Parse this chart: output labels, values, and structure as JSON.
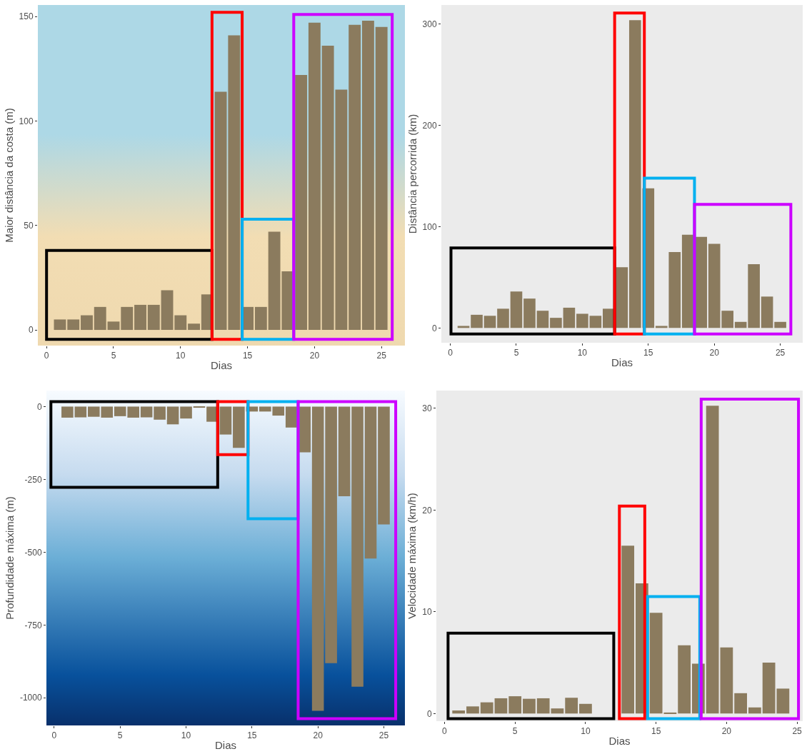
{
  "chart_data": [
    {
      "type": "bar",
      "xlabel": "Dias",
      "ylabel": "Maior distância da costa (m)",
      "color": "#8b7b5e",
      "grid": false,
      "x": [
        1,
        2,
        3,
        4,
        5,
        6,
        7,
        8,
        9,
        10,
        11,
        12,
        13,
        14,
        15,
        16,
        17,
        18,
        19,
        20,
        21,
        22,
        23,
        24,
        25
      ],
      "values": [
        5,
        5,
        7,
        11,
        4,
        11,
        12,
        12,
        19,
        7,
        3,
        17,
        114,
        141,
        11,
        11,
        47,
        28,
        122,
        147,
        136,
        115,
        146,
        148,
        145
      ],
      "xlim": [
        -0.65,
        26.75
      ],
      "xticks": [
        0,
        5,
        10,
        15,
        20,
        25
      ],
      "ylim": [
        -7.5,
        155.5
      ],
      "yticks": [
        0,
        50,
        100,
        150
      ]
    },
    {
      "type": "bar",
      "xlabel": "Dias",
      "ylabel": "Distância percorrida (km)",
      "color": "#8b7b5e",
      "grid": false,
      "x": [
        1,
        2,
        3,
        4,
        5,
        6,
        7,
        8,
        9,
        10,
        11,
        12,
        13,
        14,
        15,
        16,
        17,
        18,
        19,
        20,
        21,
        22,
        23,
        24,
        25
      ],
      "values": [
        2,
        13,
        12,
        19,
        36,
        29,
        17,
        10,
        20,
        14,
        12,
        19,
        60,
        304,
        138,
        2,
        75,
        92,
        90,
        83,
        17,
        6,
        63,
        31,
        6
      ],
      "xlim": [
        -0.68,
        26.7
      ],
      "xticks": [
        0,
        5,
        10,
        15,
        20,
        25
      ],
      "ylim": [
        -14.6,
        319
      ],
      "yticks": [
        0,
        100,
        200,
        300
      ]
    },
    {
      "type": "bar",
      "xlabel": "Dias",
      "ylabel": "Profundidade máxima (m)",
      "color": "#8b7b5e",
      "grid": false,
      "x": [
        1,
        2,
        3,
        4,
        5,
        6,
        7,
        8,
        9,
        10,
        11,
        12,
        13,
        14,
        15,
        16,
        17,
        18,
        19,
        20,
        21,
        22,
        23,
        24,
        25
      ],
      "values": [
        -38,
        -37,
        -35,
        -38,
        -33,
        -38,
        -37,
        -45,
        -61,
        -41,
        -4,
        -52,
        -96,
        -142,
        -17,
        -17,
        -31,
        -72,
        -157,
        -1045,
        -881,
        -308,
        -962,
        -522,
        -405
      ],
      "xlim": [
        -0.59,
        26.6
      ],
      "xticks": [
        0,
        5,
        10,
        15,
        20,
        25
      ],
      "ylim": [
        -1095,
        55
      ],
      "yticks": [
        0,
        -250,
        -500,
        -750,
        -1000
      ]
    },
    {
      "type": "bar",
      "xlabel": "Dias",
      "ylabel": "Velocidade máxima (km/h)",
      "color": "#8b7b5e",
      "grid": false,
      "x": [
        1,
        2,
        3,
        4,
        5,
        6,
        7,
        8,
        9,
        10,
        11,
        12,
        13,
        14,
        15,
        16,
        17,
        18,
        19,
        20,
        21,
        22,
        23,
        24
      ],
      "values": [
        0.3,
        0.7,
        1.1,
        1.5,
        1.7,
        1.45,
        1.5,
        0.5,
        1.55,
        0.95,
        null,
        null,
        16.5,
        12.8,
        9.9,
        0.1,
        6.7,
        4.9,
        30.25,
        6.5,
        2.0,
        0.6,
        5.0,
        2.45
      ],
      "xlim": [
        -0.58,
        25.4
      ],
      "xticks": [
        0,
        5,
        10,
        15,
        20,
        25
      ],
      "ylim": [
        -0.75,
        31.75
      ],
      "yticks": [
        0,
        10,
        20,
        30
      ]
    }
  ]
}
